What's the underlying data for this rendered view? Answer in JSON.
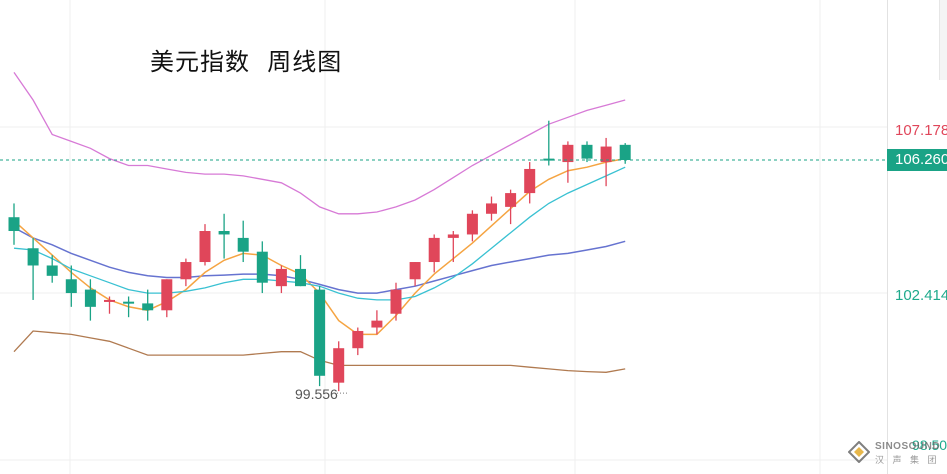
{
  "title": "美元指数  周线图",
  "price_axis": {
    "upper_label": "107.178",
    "current_label": "106.260",
    "lower_label": "102.414",
    "partial_label": "98.50",
    "low_marker": "99.556"
  },
  "watermark": {
    "brand": "SINOSOUND",
    "sub": "汉 声 集 团"
  },
  "colors": {
    "up": "#e0465a",
    "down": "#1aa386",
    "bb_upper": "#d77ad6",
    "bb_middle": "#6673d0",
    "bb_lower": "#b07a50",
    "ma5": "#f5a442",
    "ma10": "#39c1d2",
    "current_line": "#1aa386"
  },
  "chart_data": {
    "type": "candlestick",
    "title": "美元指数  周线图",
    "y_reference": [
      {
        "value": 107.178,
        "label": "107.178"
      },
      {
        "value": 106.26,
        "label": "106.260"
      },
      {
        "value": 102.414,
        "label": "102.414"
      },
      {
        "value": 98.5,
        "label": "98.50"
      }
    ],
    "low_annotation": {
      "value": 99.556,
      "label": "99.556"
    },
    "candles": [
      {
        "o": 104.6,
        "h": 105.0,
        "l": 103.8,
        "c": 104.2
      },
      {
        "o": 103.7,
        "h": 104.0,
        "l": 102.2,
        "c": 103.2
      },
      {
        "o": 103.2,
        "h": 103.5,
        "l": 102.7,
        "c": 102.9
      },
      {
        "o": 102.8,
        "h": 103.2,
        "l": 102.0,
        "c": 102.4
      },
      {
        "o": 102.5,
        "h": 102.8,
        "l": 101.6,
        "c": 102.0
      },
      {
        "o": 102.15,
        "h": 102.3,
        "l": 101.8,
        "c": 102.2
      },
      {
        "o": 102.15,
        "h": 102.3,
        "l": 101.7,
        "c": 102.12
      },
      {
        "o": 102.1,
        "h": 102.5,
        "l": 101.6,
        "c": 101.9
      },
      {
        "o": 101.9,
        "h": 102.8,
        "l": 101.7,
        "c": 102.8
      },
      {
        "o": 102.8,
        "h": 103.4,
        "l": 102.6,
        "c": 103.3
      },
      {
        "o": 103.3,
        "h": 104.4,
        "l": 103.2,
        "c": 104.2
      },
      {
        "o": 104.2,
        "h": 104.7,
        "l": 103.4,
        "c": 104.1
      },
      {
        "o": 104.0,
        "h": 104.5,
        "l": 103.3,
        "c": 103.6
      },
      {
        "o": 103.6,
        "h": 103.9,
        "l": 102.4,
        "c": 102.7
      },
      {
        "o": 102.6,
        "h": 103.2,
        "l": 102.4,
        "c": 103.1
      },
      {
        "o": 103.1,
        "h": 103.5,
        "l": 102.6,
        "c": 102.6
      },
      {
        "o": 102.5,
        "h": 102.6,
        "l": 99.7,
        "c": 100.0
      },
      {
        "o": 99.8,
        "h": 101.0,
        "l": 99.556,
        "c": 100.8
      },
      {
        "o": 100.8,
        "h": 101.4,
        "l": 100.6,
        "c": 101.3
      },
      {
        "o": 101.4,
        "h": 101.9,
        "l": 101.2,
        "c": 101.6
      },
      {
        "o": 101.8,
        "h": 102.7,
        "l": 101.6,
        "c": 102.5
      },
      {
        "o": 102.8,
        "h": 103.3,
        "l": 102.6,
        "c": 103.3
      },
      {
        "o": 103.3,
        "h": 104.1,
        "l": 103.0,
        "c": 104.0
      },
      {
        "o": 104.0,
        "h": 104.2,
        "l": 103.3,
        "c": 104.1
      },
      {
        "o": 104.1,
        "h": 104.8,
        "l": 103.9,
        "c": 104.7
      },
      {
        "o": 104.7,
        "h": 105.2,
        "l": 104.5,
        "c": 105.0
      },
      {
        "o": 104.9,
        "h": 105.4,
        "l": 104.4,
        "c": 105.3
      },
      {
        "o": 105.3,
        "h": 106.2,
        "l": 105.0,
        "c": 106.0
      },
      {
        "o": 106.3,
        "h": 107.4,
        "l": 106.1,
        "c": 106.28
      },
      {
        "o": 106.2,
        "h": 106.8,
        "l": 105.6,
        "c": 106.7
      },
      {
        "o": 106.7,
        "h": 106.8,
        "l": 106.2,
        "c": 106.3
      },
      {
        "o": 106.2,
        "h": 106.9,
        "l": 105.5,
        "c": 106.65
      },
      {
        "o": 106.7,
        "h": 106.75,
        "l": 106.15,
        "c": 106.26
      }
    ],
    "indicators": [
      {
        "key": "bb_upper",
        "values": [
          108.8,
          108.0,
          107.0,
          106.8,
          106.6,
          106.3,
          106.1,
          106.1,
          106.0,
          105.9,
          105.85,
          105.85,
          105.8,
          105.7,
          105.6,
          105.3,
          104.9,
          104.7,
          104.7,
          104.75,
          104.9,
          105.1,
          105.4,
          105.75,
          106.1,
          106.4,
          106.7,
          107.0,
          107.3,
          107.5,
          107.7,
          107.85,
          108.0
        ]
      },
      {
        "key": "bb_middle",
        "values": [
          104.3,
          104.0,
          103.8,
          103.55,
          103.35,
          103.15,
          103.0,
          102.9,
          102.85,
          102.85,
          102.9,
          102.92,
          102.95,
          102.95,
          102.9,
          102.8,
          102.65,
          102.5,
          102.4,
          102.4,
          102.5,
          102.6,
          102.75,
          102.9,
          103.05,
          103.2,
          103.3,
          103.4,
          103.5,
          103.55,
          103.65,
          103.75,
          103.9
        ]
      },
      {
        "key": "bb_lower",
        "values": [
          100.7,
          101.3,
          101.25,
          101.2,
          101.1,
          101.0,
          100.8,
          100.6,
          100.6,
          100.6,
          100.6,
          100.6,
          100.6,
          100.65,
          100.7,
          100.7,
          100.45,
          100.3,
          100.3,
          100.3,
          100.3,
          100.3,
          100.3,
          100.3,
          100.3,
          100.3,
          100.3,
          100.25,
          100.2,
          100.15,
          100.12,
          100.1,
          100.2
        ]
      },
      {
        "key": "ma5",
        "values": [
          104.5,
          104.0,
          103.5,
          103.0,
          102.55,
          102.2,
          102.0,
          101.9,
          102.15,
          102.5,
          103.0,
          103.35,
          103.55,
          103.5,
          103.2,
          102.95,
          102.4,
          101.6,
          101.2,
          101.2,
          101.75,
          102.4,
          102.95,
          103.4,
          103.85,
          104.35,
          104.85,
          105.35,
          105.7,
          105.95,
          106.05,
          106.2,
          106.3
        ]
      },
      {
        "key": "ma10",
        "values": [
          103.7,
          103.65,
          103.4,
          103.1,
          102.9,
          102.7,
          102.5,
          102.4,
          102.4,
          102.45,
          102.55,
          102.7,
          102.8,
          102.8,
          102.75,
          102.7,
          102.6,
          102.4,
          102.25,
          102.2,
          102.2,
          102.3,
          102.55,
          102.85,
          103.25,
          103.7,
          104.15,
          104.6,
          105.0,
          105.3,
          105.55,
          105.8,
          106.05
        ]
      }
    ]
  }
}
